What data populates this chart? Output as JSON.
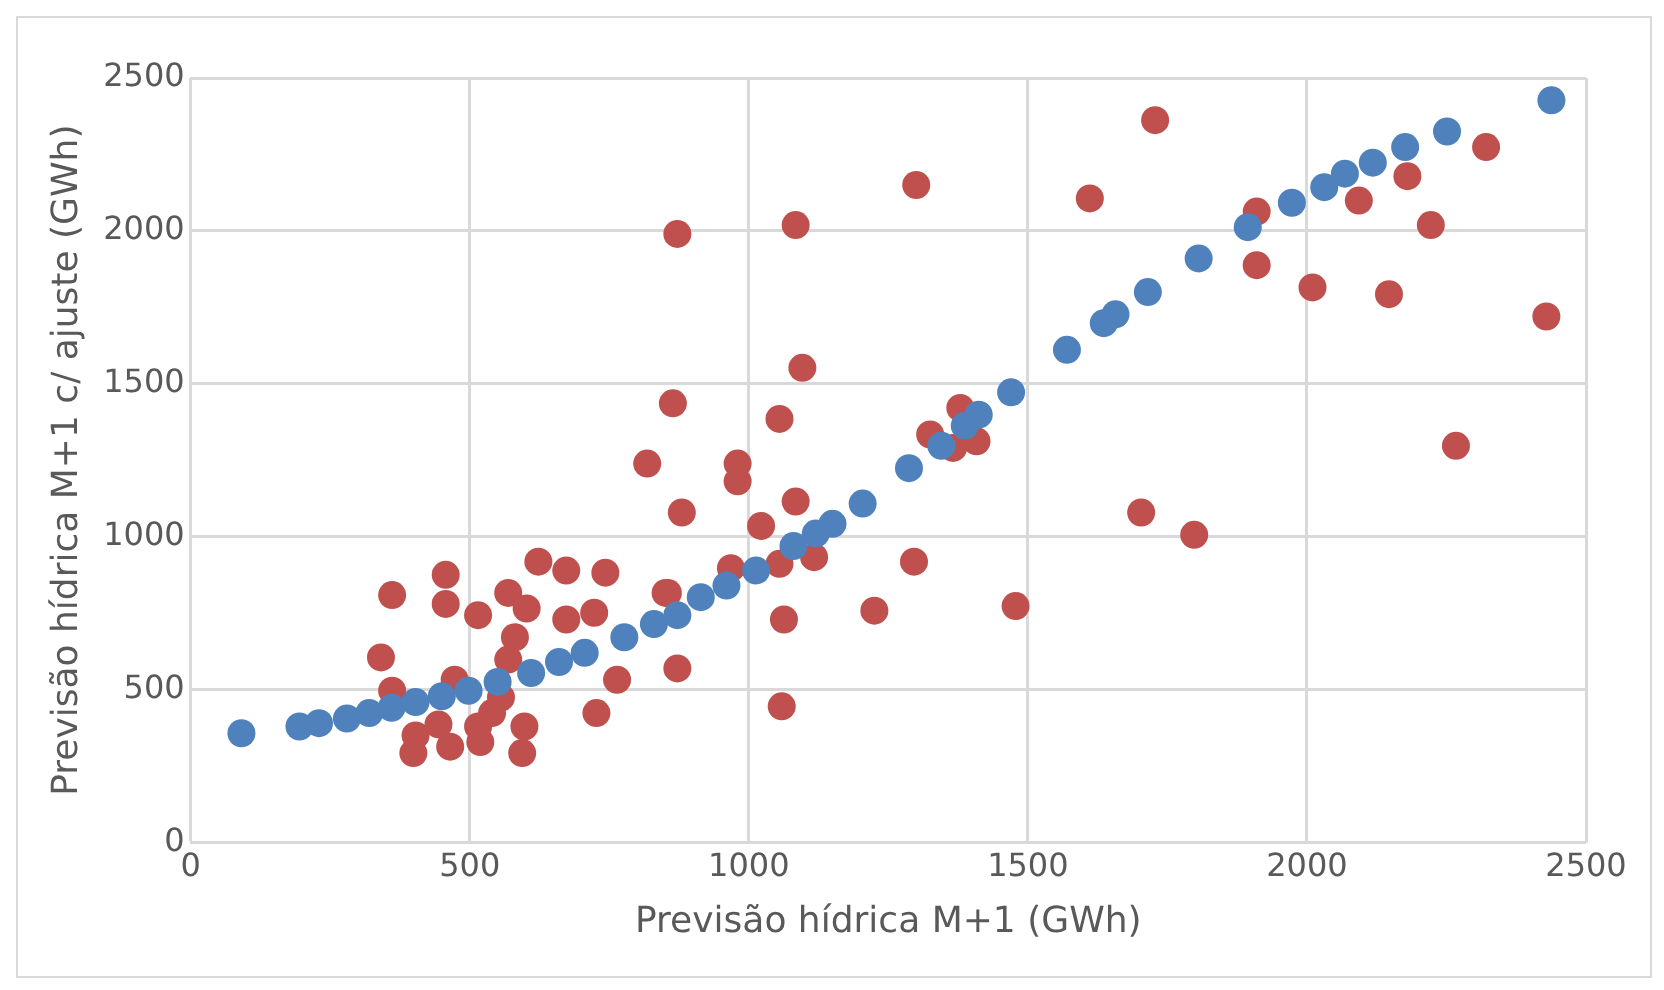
{
  "chart_data": {
    "type": "scatter",
    "xlabel": "Previsão hídrica M+1 (GWh)",
    "ylabel": "Previsão hídrica M+1 c/ ajuste (GWh)",
    "xlim": [
      0,
      2500
    ],
    "ylim": [
      0,
      2500
    ],
    "xticks": [
      0,
      500,
      1000,
      1500,
      2000,
      2500
    ],
    "yticks": [
      0,
      500,
      1000,
      1500,
      2000,
      2500
    ],
    "grid": true,
    "legend": false,
    "marker": "circle",
    "series": [
      {
        "color": "#4f81bd",
        "x": [
          91,
          195,
          230,
          280,
          320,
          360,
          403,
          450,
          498,
          550,
          610,
          660,
          706,
          777,
          830,
          872,
          914,
          960,
          1013,
          1080,
          1120,
          1150,
          1204,
          1287,
          1345,
          1387,
          1412,
          1470,
          1570,
          1636,
          1657,
          1715,
          1806,
          1894,
          1973,
          2031,
          2068,
          2118,
          2176,
          2251,
          2438
        ],
        "values": [
          357,
          379,
          390,
          405,
          423,
          440,
          459,
          478,
          496,
          525,
          554,
          590,
          620,
          671,
          714,
          743,
          802,
          840,
          889,
          969,
          1010,
          1042,
          1108,
          1224,
          1297,
          1363,
          1399,
          1472,
          1611,
          1698,
          1727,
          1800,
          1910,
          2012,
          2092,
          2143,
          2187,
          2223,
          2274,
          2325,
          2427
        ]
      },
      {
        "color": "#c0504d",
        "x": [
          872,
          1084,
          1300,
          1611,
          1096,
          864,
          1055,
          818,
          980,
          980,
          880,
          1084,
          1022,
          1379,
          1325,
          1366,
          1408,
          1117,
          1055,
          1296,
          968,
          855,
          1063,
          1225,
          1478,
          872,
          1059,
          1703,
          1728,
          1910,
          1910,
          2010,
          2093,
          2180,
          2222,
          2147,
          2321,
          2429,
          2267,
          1798,
          361,
          457,
          457,
          341,
          361,
          515,
          569,
          602,
          623,
          673,
          743,
          723,
          673,
          851,
          764,
          727,
          399,
          465,
          519,
          594,
          598,
          540,
          403,
          473,
          569,
          581,
          556,
          515,
          444
        ],
        "values": [
          1990,
          2019,
          2150,
          2106,
          1552,
          1436,
          1385,
          1239,
          1239,
          1181,
          1079,
          1115,
          1035,
          1421,
          1334,
          1290,
          1312,
          933,
          911,
          918,
          897,
          816,
          729,
          758,
          773,
          569,
          445,
          1079,
          2362,
          2063,
          1888,
          1815,
          2099,
          2179,
          2019,
          1793,
          2274,
          1720,
          1297,
          1006,
          809,
          875,
          780,
          605,
          496,
          743,
          816,
          765,
          918,
          889,
          882,
          751,
          729,
          816,
          532,
          423,
          292,
          313,
          328,
          292,
          379,
          423,
          350,
          532,
          598,
          671,
          474,
          379,
          386
        ]
      }
    ]
  }
}
